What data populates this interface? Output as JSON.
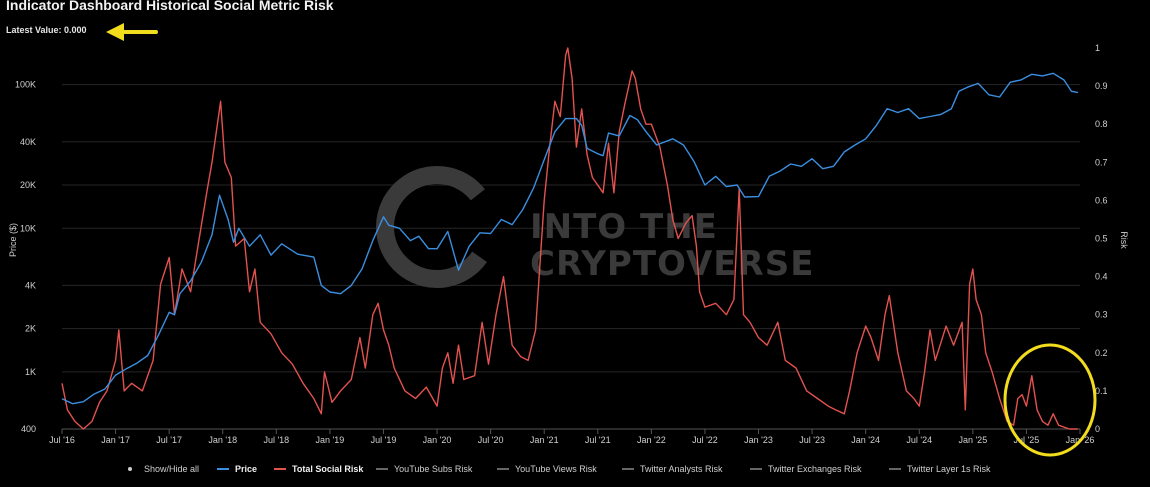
{
  "title": "Indicator Dashboard Historical Social Metric Risk",
  "latest_value": "Latest Value: 0.000",
  "watermark": {
    "line1": "INTO THE",
    "line2": "CRYPTOVERSE"
  },
  "colors": {
    "background": "#000000",
    "price": "#3a8fe0",
    "social_risk": "#e2524f",
    "annotation": "#f2dc1e",
    "text": "#cfcfcf"
  },
  "chart_data": {
    "type": "line",
    "title": "Indicator Dashboard Historical Social Metric Risk",
    "xlabel": "",
    "ylabel_left": "Price ($)",
    "ylabel_right": "Risk",
    "x_tick_labels": [
      "Jul '16",
      "Jan '17",
      "Jul '17",
      "Jan '18",
      "Jul '18",
      "Jan '19",
      "Jul '19",
      "Jan '20",
      "Jul '20",
      "Jan '21",
      "Jul '21",
      "Jan '22",
      "Jul '22",
      "Jan '23",
      "Jul '23",
      "Jan '24",
      "Jul '24",
      "Jan '25",
      "Jul '25",
      "Jan '26"
    ],
    "x_tick_years": [
      2016.5,
      2017.0,
      2017.5,
      2018.0,
      2018.5,
      2019.0,
      2019.5,
      2020.0,
      2020.5,
      2021.0,
      2021.5,
      2022.0,
      2022.5,
      2023.0,
      2023.5,
      2024.0,
      2024.5,
      2025.0,
      2025.5,
      2026.0
    ],
    "y_left_scale": "log",
    "y_left_range": [
      400,
      180000
    ],
    "y_left_ticks": [
      400,
      1000,
      2000,
      4000,
      10000,
      20000,
      40000,
      100000
    ],
    "y_left_tick_labels": [
      "400",
      "1K",
      "2K",
      "4K",
      "10K",
      "20K",
      "40K",
      "100K"
    ],
    "y_right_range": [
      0,
      1
    ],
    "y_right_ticks": [
      0,
      0.1,
      0.2,
      0.3,
      0.4,
      0.5,
      0.6,
      0.7,
      0.8,
      0.9,
      1
    ],
    "y_right_tick_labels": [
      "0",
      "0.1",
      "0.2",
      "0.3",
      "0.4",
      "0.5",
      "0.6",
      "0.7",
      "0.8",
      "0.9",
      "1"
    ],
    "grid": true,
    "legend_position": "bottom",
    "legend": [
      "Show/Hide all",
      "Price",
      "Total Social Risk",
      "YouTube Subs Risk",
      "YouTube Views Risk",
      "Twitter Analysts Risk",
      "Twitter Exchanges Risk",
      "Twitter Layer 1s Risk"
    ],
    "series": [
      {
        "name": "Price",
        "axis": "left",
        "points": [
          [
            2016.5,
            650
          ],
          [
            2016.6,
            600
          ],
          [
            2016.7,
            620
          ],
          [
            2016.8,
            700
          ],
          [
            2016.9,
            760
          ],
          [
            2017.0,
            950
          ],
          [
            2017.1,
            1050
          ],
          [
            2017.2,
            1150
          ],
          [
            2017.3,
            1300
          ],
          [
            2017.4,
            1800
          ],
          [
            2017.5,
            2600
          ],
          [
            2017.55,
            2500
          ],
          [
            2017.6,
            3500
          ],
          [
            2017.7,
            4300
          ],
          [
            2017.8,
            5800
          ],
          [
            2017.9,
            9000
          ],
          [
            2017.97,
            17000
          ],
          [
            2018.05,
            11500
          ],
          [
            2018.1,
            8000
          ],
          [
            2018.15,
            10000
          ],
          [
            2018.25,
            7500
          ],
          [
            2018.35,
            9000
          ],
          [
            2018.45,
            6500
          ],
          [
            2018.55,
            7800
          ],
          [
            2018.7,
            6600
          ],
          [
            2018.85,
            6300
          ],
          [
            2018.92,
            4000
          ],
          [
            2019.0,
            3600
          ],
          [
            2019.1,
            3500
          ],
          [
            2019.2,
            4000
          ],
          [
            2019.3,
            5200
          ],
          [
            2019.4,
            8200
          ],
          [
            2019.5,
            12000
          ],
          [
            2019.55,
            10500
          ],
          [
            2019.65,
            10000
          ],
          [
            2019.75,
            8200
          ],
          [
            2019.83,
            8800
          ],
          [
            2019.92,
            7200
          ],
          [
            2020.0,
            7200
          ],
          [
            2020.1,
            9500
          ],
          [
            2020.2,
            5100
          ],
          [
            2020.3,
            7500
          ],
          [
            2020.4,
            9300
          ],
          [
            2020.5,
            9200
          ],
          [
            2020.6,
            11500
          ],
          [
            2020.7,
            10600
          ],
          [
            2020.8,
            13500
          ],
          [
            2020.9,
            19000
          ],
          [
            2021.0,
            30000
          ],
          [
            2021.1,
            47000
          ],
          [
            2021.2,
            58000
          ],
          [
            2021.3,
            58000
          ],
          [
            2021.35,
            52000
          ],
          [
            2021.4,
            36000
          ],
          [
            2021.5,
            33000
          ],
          [
            2021.55,
            32000
          ],
          [
            2021.6,
            46000
          ],
          [
            2021.7,
            44000
          ],
          [
            2021.8,
            61000
          ],
          [
            2021.87,
            57000
          ],
          [
            2021.95,
            47000
          ],
          [
            2022.05,
            38000
          ],
          [
            2022.2,
            42000
          ],
          [
            2022.3,
            38000
          ],
          [
            2022.4,
            29000
          ],
          [
            2022.5,
            20000
          ],
          [
            2022.6,
            23000
          ],
          [
            2022.7,
            19500
          ],
          [
            2022.8,
            20000
          ],
          [
            2022.87,
            16500
          ],
          [
            2023.0,
            16600
          ],
          [
            2023.1,
            23000
          ],
          [
            2023.2,
            25000
          ],
          [
            2023.3,
            28000
          ],
          [
            2023.4,
            27000
          ],
          [
            2023.5,
            30500
          ],
          [
            2023.6,
            26000
          ],
          [
            2023.7,
            27000
          ],
          [
            2023.8,
            34000
          ],
          [
            2023.9,
            38000
          ],
          [
            2024.0,
            42000
          ],
          [
            2024.1,
            52000
          ],
          [
            2024.2,
            68000
          ],
          [
            2024.3,
            64000
          ],
          [
            2024.4,
            68000
          ],
          [
            2024.5,
            58000
          ],
          [
            2024.6,
            60000
          ],
          [
            2024.7,
            62000
          ],
          [
            2024.8,
            68000
          ],
          [
            2024.87,
            90000
          ],
          [
            2024.95,
            96000
          ],
          [
            2025.05,
            102000
          ],
          [
            2025.15,
            85000
          ],
          [
            2025.25,
            82000
          ],
          [
            2025.35,
            104000
          ],
          [
            2025.45,
            108000
          ],
          [
            2025.55,
            118000
          ],
          [
            2025.65,
            115000
          ],
          [
            2025.75,
            120000
          ],
          [
            2025.85,
            108000
          ],
          [
            2025.92,
            90000
          ],
          [
            2025.98,
            88000
          ]
        ]
      },
      {
        "name": "Total Social Risk",
        "axis": "right",
        "points": [
          [
            2016.5,
            0.12
          ],
          [
            2016.55,
            0.05
          ],
          [
            2016.62,
            0.02
          ],
          [
            2016.7,
            0.0
          ],
          [
            2016.78,
            0.02
          ],
          [
            2016.85,
            0.07
          ],
          [
            2016.92,
            0.1
          ],
          [
            2017.0,
            0.18
          ],
          [
            2017.03,
            0.26
          ],
          [
            2017.08,
            0.1
          ],
          [
            2017.15,
            0.12
          ],
          [
            2017.25,
            0.1
          ],
          [
            2017.35,
            0.18
          ],
          [
            2017.42,
            0.38
          ],
          [
            2017.5,
            0.45
          ],
          [
            2017.55,
            0.3
          ],
          [
            2017.62,
            0.42
          ],
          [
            2017.7,
            0.36
          ],
          [
            2017.78,
            0.5
          ],
          [
            2017.85,
            0.62
          ],
          [
            2017.9,
            0.7
          ],
          [
            2017.95,
            0.8
          ],
          [
            2017.98,
            0.86
          ],
          [
            2018.02,
            0.7
          ],
          [
            2018.08,
            0.66
          ],
          [
            2018.12,
            0.48
          ],
          [
            2018.2,
            0.5
          ],
          [
            2018.25,
            0.36
          ],
          [
            2018.3,
            0.42
          ],
          [
            2018.35,
            0.28
          ],
          [
            2018.45,
            0.25
          ],
          [
            2018.55,
            0.2
          ],
          [
            2018.65,
            0.17
          ],
          [
            2018.75,
            0.12
          ],
          [
            2018.85,
            0.08
          ],
          [
            2018.92,
            0.04
          ],
          [
            2018.95,
            0.15
          ],
          [
            2019.02,
            0.07
          ],
          [
            2019.1,
            0.1
          ],
          [
            2019.2,
            0.13
          ],
          [
            2019.28,
            0.24
          ],
          [
            2019.33,
            0.16
          ],
          [
            2019.4,
            0.3
          ],
          [
            2019.45,
            0.33
          ],
          [
            2019.5,
            0.26
          ],
          [
            2019.55,
            0.22
          ],
          [
            2019.6,
            0.16
          ],
          [
            2019.7,
            0.1
          ],
          [
            2019.8,
            0.08
          ],
          [
            2019.9,
            0.11
          ],
          [
            2020.0,
            0.06
          ],
          [
            2020.05,
            0.16
          ],
          [
            2020.1,
            0.2
          ],
          [
            2020.15,
            0.12
          ],
          [
            2020.2,
            0.22
          ],
          [
            2020.25,
            0.13
          ],
          [
            2020.35,
            0.14
          ],
          [
            2020.42,
            0.28
          ],
          [
            2020.48,
            0.17
          ],
          [
            2020.55,
            0.3
          ],
          [
            2020.62,
            0.4
          ],
          [
            2020.7,
            0.22
          ],
          [
            2020.78,
            0.19
          ],
          [
            2020.85,
            0.18
          ],
          [
            2020.92,
            0.26
          ],
          [
            2021.0,
            0.6
          ],
          [
            2021.05,
            0.74
          ],
          [
            2021.1,
            0.86
          ],
          [
            2021.15,
            0.82
          ],
          [
            2021.2,
            0.98
          ],
          [
            2021.22,
            1.0
          ],
          [
            2021.26,
            0.92
          ],
          [
            2021.3,
            0.74
          ],
          [
            2021.35,
            0.84
          ],
          [
            2021.4,
            0.72
          ],
          [
            2021.45,
            0.66
          ],
          [
            2021.5,
            0.64
          ],
          [
            2021.55,
            0.62
          ],
          [
            2021.6,
            0.75
          ],
          [
            2021.65,
            0.62
          ],
          [
            2021.7,
            0.78
          ],
          [
            2021.75,
            0.85
          ],
          [
            2021.82,
            0.94
          ],
          [
            2021.85,
            0.92
          ],
          [
            2021.9,
            0.84
          ],
          [
            2021.95,
            0.8
          ],
          [
            2022.0,
            0.8
          ],
          [
            2022.08,
            0.74
          ],
          [
            2022.15,
            0.64
          ],
          [
            2022.2,
            0.55
          ],
          [
            2022.25,
            0.5
          ],
          [
            2022.32,
            0.54
          ],
          [
            2022.38,
            0.56
          ],
          [
            2022.42,
            0.48
          ],
          [
            2022.45,
            0.36
          ],
          [
            2022.5,
            0.32
          ],
          [
            2022.6,
            0.33
          ],
          [
            2022.7,
            0.3
          ],
          [
            2022.77,
            0.34
          ],
          [
            2022.82,
            0.63
          ],
          [
            2022.86,
            0.3
          ],
          [
            2022.92,
            0.28
          ],
          [
            2023.0,
            0.24
          ],
          [
            2023.08,
            0.22
          ],
          [
            2023.18,
            0.28
          ],
          [
            2023.25,
            0.18
          ],
          [
            2023.35,
            0.16
          ],
          [
            2023.45,
            0.1
          ],
          [
            2023.55,
            0.08
          ],
          [
            2023.65,
            0.06
          ],
          [
            2023.72,
            0.05
          ],
          [
            2023.8,
            0.04
          ],
          [
            2023.85,
            0.1
          ],
          [
            2023.92,
            0.2
          ],
          [
            2024.0,
            0.27
          ],
          [
            2024.05,
            0.24
          ],
          [
            2024.12,
            0.18
          ],
          [
            2024.18,
            0.3
          ],
          [
            2024.22,
            0.35
          ],
          [
            2024.3,
            0.2
          ],
          [
            2024.38,
            0.1
          ],
          [
            2024.45,
            0.08
          ],
          [
            2024.5,
            0.06
          ],
          [
            2024.55,
            0.15
          ],
          [
            2024.6,
            0.26
          ],
          [
            2024.65,
            0.18
          ],
          [
            2024.75,
            0.27
          ],
          [
            2024.82,
            0.22
          ],
          [
            2024.9,
            0.28
          ],
          [
            2024.93,
            0.05
          ],
          [
            2024.97,
            0.38
          ],
          [
            2025.0,
            0.42
          ],
          [
            2025.03,
            0.34
          ],
          [
            2025.08,
            0.3
          ],
          [
            2025.12,
            0.2
          ],
          [
            2025.18,
            0.15
          ],
          [
            2025.25,
            0.08
          ],
          [
            2025.32,
            0.02
          ],
          [
            2025.38,
            0.01
          ],
          [
            2025.42,
            0.08
          ],
          [
            2025.46,
            0.09
          ],
          [
            2025.5,
            0.06
          ],
          [
            2025.55,
            0.14
          ],
          [
            2025.6,
            0.05
          ],
          [
            2025.65,
            0.02
          ],
          [
            2025.7,
            0.01
          ],
          [
            2025.75,
            0.04
          ],
          [
            2025.8,
            0.01
          ],
          [
            2025.9,
            0.0
          ],
          [
            2025.98,
            0.0
          ]
        ]
      }
    ]
  }
}
